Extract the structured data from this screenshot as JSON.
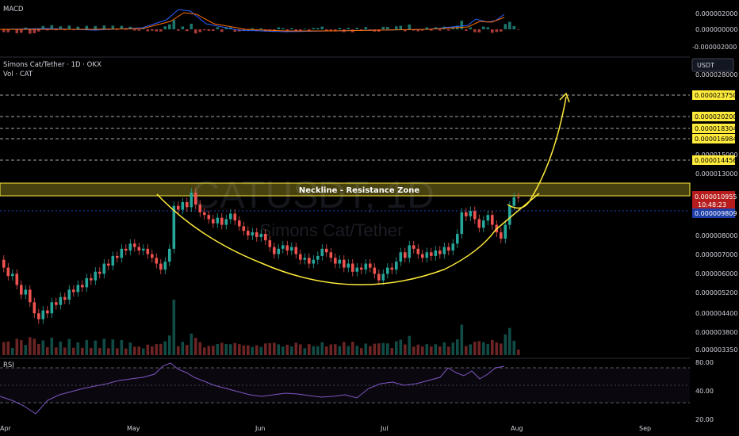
{
  "header": {
    "symbol_title": "Simons Cat/Tether · 1D · OKX",
    "volume_label": "Vol · CAT",
    "currency_button": "USDT",
    "macd_label": "MACD",
    "rsi_label": "RSI"
  },
  "watermark": {
    "symbol": "CATUSDT, 1D",
    "name": "Simons Cat/Tether"
  },
  "annotations": {
    "zone_label": "Neckline - Resistance Zone"
  },
  "colors": {
    "up": "#26a69a",
    "down": "#ef5350",
    "annotation": "#ffeb3b",
    "price_tag": "#b71c1c",
    "level2_tag": "#1e3ea8",
    "rsi_line": "#7e57c2"
  },
  "chart_data": {
    "type": "candlestick",
    "price_axis": {
      "scale": "log",
      "range": [
        3.3e-06,
        2.9e-06
      ],
      "ticks": [
        "0.000028000",
        "0.000015000",
        "0.000013000",
        "0.000008000",
        "0.000007000",
        "0.000006000",
        "0.000005200",
        "0.000004400",
        "0.000003800",
        "0.000003350"
      ]
    },
    "x_axis": {
      "labels": [
        "Apr",
        "May",
        "Jun",
        "Jul",
        "Aug",
        "Sep"
      ]
    },
    "resistance_levels": [
      "0.000023750",
      "0.000020200",
      "0.000018304",
      "0.000016984",
      "0.000014456"
    ],
    "last_price": "0.000010955",
    "countdown": "10:48:23",
    "second_level": "0.000009809",
    "resistance_zone": {
      "low": 1.03e-05,
      "high": 1.16e-05
    },
    "macd": {
      "ticks": [
        "0.000002000",
        "0.000000000",
        "-0.000002000"
      ]
    },
    "rsi": {
      "ticks": [
        "80.00",
        "40.00",
        "20.00"
      ],
      "upper_band": 70,
      "lower_band": 30
    },
    "candles": [
      [
        6.8,
        6.4
      ],
      [
        6.4,
        6.0
      ],
      [
        6.0,
        6.1
      ],
      [
        6.1,
        5.6
      ],
      [
        5.6,
        5.2
      ],
      [
        5.2,
        5.4
      ],
      [
        5.4,
        4.9
      ],
      [
        4.9,
        4.5
      ],
      [
        4.5,
        4.3
      ],
      [
        4.3,
        4.6
      ],
      [
        4.6,
        4.5
      ],
      [
        4.5,
        4.9
      ],
      [
        4.9,
        4.8
      ],
      [
        4.8,
        5.1
      ],
      [
        5.1,
        5.0
      ],
      [
        5.0,
        5.4
      ],
      [
        5.4,
        5.3
      ],
      [
        5.3,
        5.6
      ],
      [
        5.6,
        5.5
      ],
      [
        5.5,
        5.9
      ],
      [
        5.9,
        5.8
      ],
      [
        5.8,
        6.2
      ],
      [
        6.2,
        6.1
      ],
      [
        6.1,
        6.6
      ],
      [
        6.6,
        6.5
      ],
      [
        6.5,
        7.0
      ],
      [
        7.0,
        6.9
      ],
      [
        6.9,
        7.4
      ],
      [
        7.4,
        7.3
      ],
      [
        7.3,
        7.7
      ],
      [
        7.7,
        7.5
      ],
      [
        7.5,
        7.3
      ],
      [
        7.3,
        7.4
      ],
      [
        7.4,
        7.1
      ],
      [
        7.1,
        6.9
      ],
      [
        6.9,
        6.6
      ],
      [
        6.6,
        6.3
      ],
      [
        6.3,
        6.7
      ],
      [
        6.7,
        7.4
      ],
      [
        7.4,
        10.3
      ],
      [
        10.3,
        10.0
      ],
      [
        10.0,
        10.6
      ],
      [
        10.6,
        10.2
      ],
      [
        10.2,
        11.4
      ],
      [
        11.4,
        10.4
      ],
      [
        10.4,
        9.8
      ],
      [
        9.8,
        9.6
      ],
      [
        9.6,
        9.3
      ],
      [
        9.3,
        9.0
      ],
      [
        9.0,
        9.4
      ],
      [
        9.4,
        8.9
      ],
      [
        8.9,
        9.3
      ],
      [
        9.3,
        9.7
      ],
      [
        9.7,
        9.2
      ],
      [
        9.2,
        8.8
      ],
      [
        8.8,
        8.5
      ],
      [
        8.5,
        8.2
      ],
      [
        8.2,
        8.4
      ],
      [
        8.4,
        8.1
      ],
      [
        8.1,
        8.3
      ],
      [
        8.3,
        7.9
      ],
      [
        7.9,
        7.5
      ],
      [
        7.5,
        7.1
      ],
      [
        7.1,
        7.4
      ],
      [
        7.4,
        7.6
      ],
      [
        7.6,
        7.3
      ],
      [
        7.3,
        7.5
      ],
      [
        7.5,
        7.1
      ],
      [
        7.1,
        6.8
      ],
      [
        6.8,
        6.9
      ],
      [
        6.9,
        6.6
      ],
      [
        6.6,
        6.8
      ],
      [
        6.8,
        7.0
      ],
      [
        7.0,
        7.4
      ],
      [
        7.4,
        7.2
      ],
      [
        7.2,
        6.9
      ],
      [
        6.9,
        6.6
      ],
      [
        6.6,
        6.8
      ],
      [
        6.8,
        6.4
      ],
      [
        6.4,
        6.6
      ],
      [
        6.6,
        6.2
      ],
      [
        6.2,
        6.4
      ],
      [
        6.4,
        6.3
      ],
      [
        6.3,
        6.6
      ],
      [
        6.6,
        6.4
      ],
      [
        6.4,
        6.1
      ],
      [
        6.1,
        5.8
      ],
      [
        5.8,
        6.1
      ],
      [
        6.1,
        6.4
      ],
      [
        6.4,
        6.3
      ],
      [
        6.3,
        6.7
      ],
      [
        6.7,
        7.2
      ],
      [
        7.2,
        6.9
      ],
      [
        6.9,
        7.6
      ],
      [
        7.6,
        7.4
      ],
      [
        7.4,
        7.1
      ],
      [
        7.1,
        6.9
      ],
      [
        6.9,
        7.2
      ],
      [
        7.2,
        7.0
      ],
      [
        7.0,
        7.3
      ],
      [
        7.3,
        7.1
      ],
      [
        7.1,
        7.5
      ],
      [
        7.5,
        7.3
      ],
      [
        7.3,
        7.7
      ],
      [
        7.7,
        8.3
      ],
      [
        8.3,
        9.8
      ],
      [
        9.8,
        9.5
      ],
      [
        9.5,
        9.9
      ],
      [
        9.9,
        9.3
      ],
      [
        9.3,
        8.7
      ],
      [
        8.7,
        9.2
      ],
      [
        9.2,
        9.6
      ],
      [
        9.6,
        8.9
      ],
      [
        8.9,
        8.4
      ],
      [
        8.4,
        8.0
      ],
      [
        8.0,
        8.9
      ],
      [
        8.9,
        10.3
      ],
      [
        10.3,
        11.0
      ],
      [
        11.0,
        10.95
      ]
    ]
  }
}
